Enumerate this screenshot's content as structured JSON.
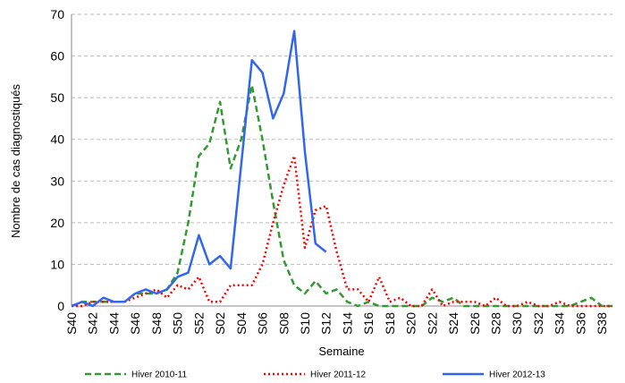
{
  "chart_data": {
    "type": "line",
    "y_label": "Nombre de cas diagnostiqués",
    "x_label": "Semaine",
    "categories": [
      "S40",
      null,
      "S42",
      null,
      "S44",
      null,
      "S46",
      null,
      "S48",
      null,
      "S50",
      null,
      "S52",
      null,
      "S02",
      null,
      "S04",
      null,
      "S06",
      null,
      "S08",
      null,
      "S10",
      null,
      "S12",
      null,
      "S14",
      null,
      "S16",
      null,
      "S18",
      null,
      "S20",
      null,
      "S22",
      null,
      "S24",
      null,
      "S26",
      null,
      "S28",
      null,
      "S30",
      null,
      "S32",
      null,
      "S34",
      null,
      "S36",
      null,
      "S38",
      null
    ],
    "series": [
      {
        "name": "Hiver 2010-11",
        "color": "#339933",
        "dash": "dashed",
        "values": [
          0,
          1,
          1,
          1,
          1,
          1,
          3,
          3,
          3,
          4,
          8,
          20,
          36,
          39,
          49,
          33,
          40,
          53,
          40,
          25,
          11,
          5,
          3,
          6,
          3,
          4,
          1,
          0,
          1,
          0,
          0,
          0,
          0,
          0,
          2,
          1,
          2,
          0,
          0,
          0,
          0,
          0,
          0,
          0,
          0,
          0,
          0,
          0,
          1,
          2,
          0,
          0
        ]
      },
      {
        "name": "Hiver 2011-12",
        "color": "#ff0000",
        "dash": "dotted",
        "values": [
          0,
          0,
          1,
          1,
          1,
          1,
          2,
          3,
          4,
          2,
          5,
          4,
          7,
          1,
          1,
          5,
          5,
          5,
          10,
          20,
          29,
          36,
          14,
          23,
          24,
          13,
          4,
          4,
          1,
          7,
          1,
          2,
          0,
          0,
          4,
          0,
          1,
          1,
          1,
          0,
          2,
          0,
          0,
          1,
          0,
          0,
          1,
          0,
          0,
          0,
          0,
          0
        ]
      },
      {
        "name": "Hiver 2012-13",
        "color": "#3366ee",
        "dash": "solid",
        "values": [
          0,
          1,
          0,
          2,
          1,
          1,
          3,
          4,
          3,
          4,
          7,
          8,
          17,
          10,
          12,
          9,
          34,
          59,
          56,
          45,
          51,
          66,
          37,
          15,
          13,
          null,
          null,
          null,
          null,
          null,
          null,
          null,
          null,
          null,
          null,
          null,
          null,
          null,
          null,
          null,
          null,
          null,
          null,
          null,
          null,
          null,
          null,
          null,
          null,
          null,
          null,
          null
        ]
      }
    ],
    "ylim": [
      0,
      70
    ],
    "yticks": [
      0,
      10,
      20,
      30,
      40,
      50,
      60,
      70
    ],
    "grid": true
  }
}
